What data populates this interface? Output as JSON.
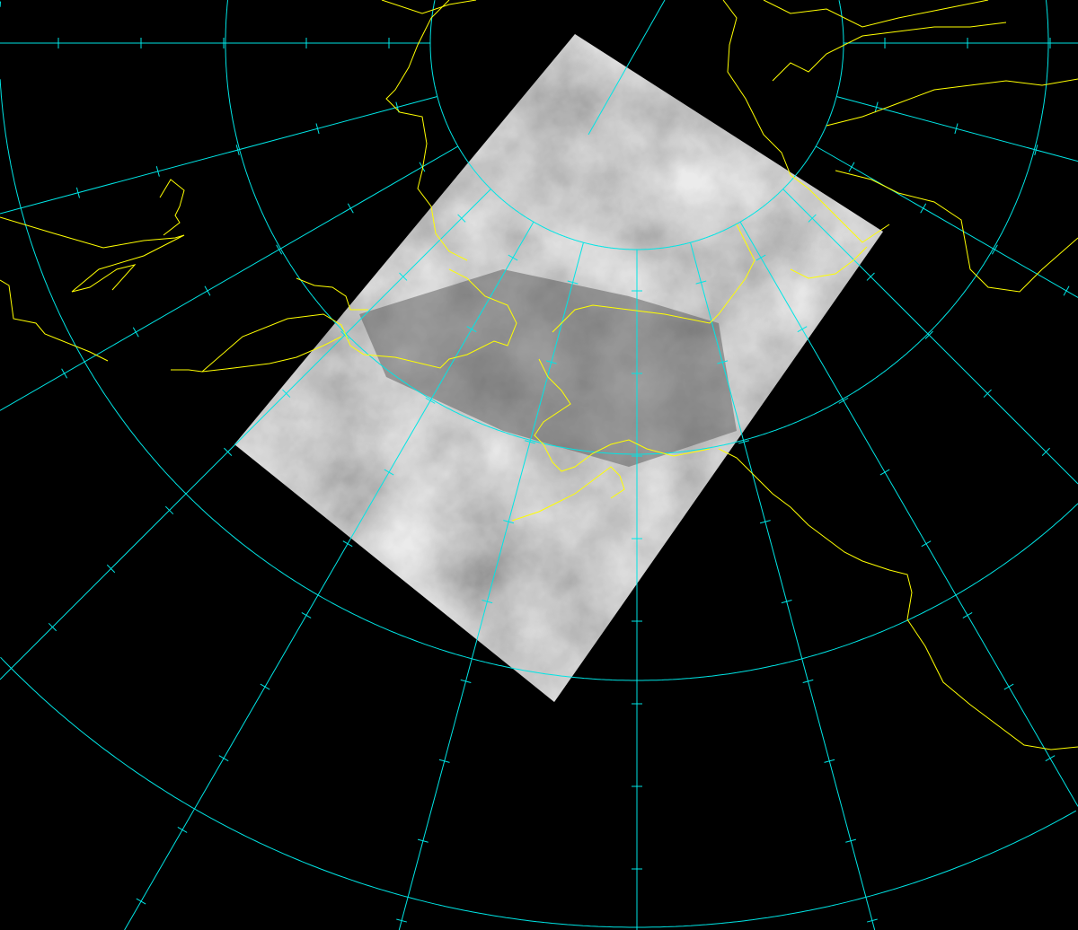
{
  "map": {
    "projection": "polar-stereographic",
    "background_color": "#000000",
    "graticule_color": "#00e5e5",
    "coastline_color": "#ffff00",
    "imagery": "satellite-infrared-grayscale",
    "graticule_meridian_spacing_deg": 15
  }
}
